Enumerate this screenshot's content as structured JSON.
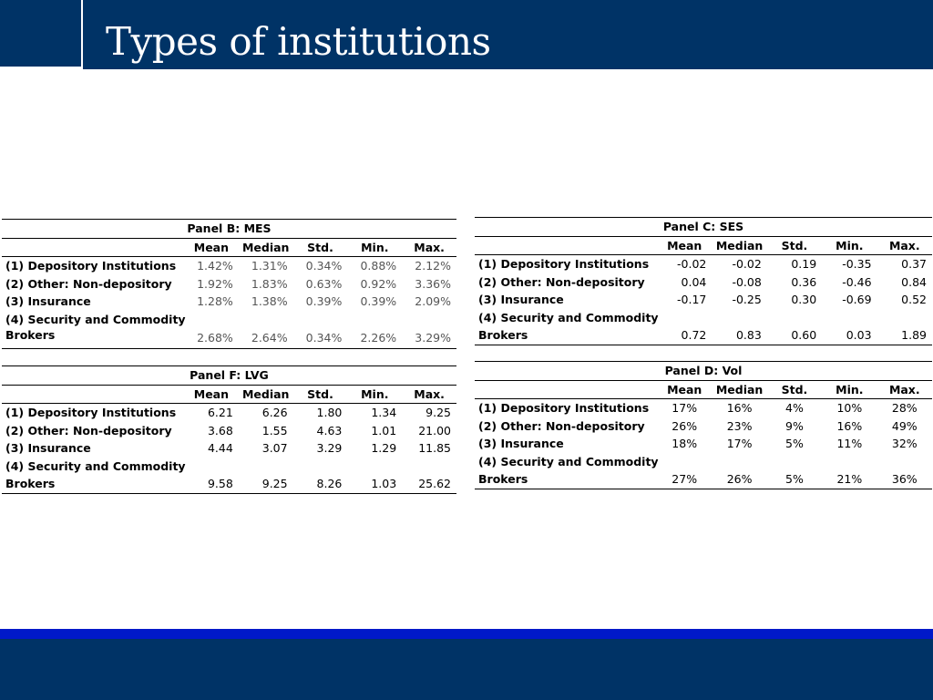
{
  "slide": {
    "title": "Types of institutions",
    "colors": {
      "header": "#003366",
      "accent": "#0019c9",
      "background": "#ffffff"
    }
  },
  "panels": {
    "B": {
      "title": "Panel B: MES",
      "columns": [
        "Mean",
        "Median",
        "Std.",
        "Min.",
        "Max."
      ],
      "rows": [
        {
          "label": "(1) Depository Institutions",
          "values": [
            "1.42%",
            "1.31%",
            "0.34%",
            "0.88%",
            "2.12%"
          ]
        },
        {
          "label": "(2) Other: Non-depository",
          "values": [
            "1.92%",
            "1.83%",
            "0.63%",
            "0.92%",
            "3.36%"
          ]
        },
        {
          "label": "(3) Insurance",
          "values": [
            "1.28%",
            "1.38%",
            "0.39%",
            "0.39%",
            "2.09%"
          ]
        },
        {
          "label": "(4) Security and Commodity",
          "label2": "Brokers",
          "values": [
            "2.68%",
            "2.64%",
            "0.34%",
            "2.26%",
            "3.29%"
          ]
        }
      ]
    },
    "C": {
      "title": "Panel C: SES",
      "columns": [
        "Mean",
        "Median",
        "Std.",
        "Min.",
        "Max."
      ],
      "rows": [
        {
          "label": "(1) Depository Institutions",
          "values": [
            "-0.02",
            "-0.02",
            "0.19",
            "-0.35",
            "0.37"
          ]
        },
        {
          "label": "(2) Other: Non-depository",
          "values": [
            "0.04",
            "-0.08",
            "0.36",
            "-0.46",
            "0.84"
          ]
        },
        {
          "label": "(3) Insurance",
          "values": [
            "-0.17",
            "-0.25",
            "0.30",
            "-0.69",
            "0.52"
          ]
        },
        {
          "label": "(4) Security and Commodity",
          "label2": "Brokers",
          "values": [
            "0.72",
            "0.83",
            "0.60",
            "0.03",
            "1.89"
          ]
        }
      ]
    },
    "F": {
      "title": "Panel F: LVG",
      "columns": [
        "Mean",
        "Median",
        "Std.",
        "Min.",
        "Max."
      ],
      "rows": [
        {
          "label": "(1) Depository Institutions",
          "values": [
            "6.21",
            "6.26",
            "1.80",
            "1.34",
            "9.25"
          ]
        },
        {
          "label": "(2) Other: Non-depository",
          "values": [
            "3.68",
            "1.55",
            "4.63",
            "1.01",
            "21.00"
          ]
        },
        {
          "label": "(3) Insurance",
          "values": [
            "4.44",
            "3.07",
            "3.29",
            "1.29",
            "11.85"
          ]
        },
        {
          "label": "(4) Security and Commodity",
          "label2": "Brokers",
          "values": [
            "9.58",
            "9.25",
            "8.26",
            "1.03",
            "25.62"
          ]
        }
      ]
    },
    "D": {
      "title": "Panel D: Vol",
      "columns": [
        "Mean",
        "Median",
        "Std.",
        "Min.",
        "Max."
      ],
      "rows": [
        {
          "label": "(1) Depository Institutions",
          "values": [
            "17%",
            "16%",
            "4%",
            "10%",
            "28%"
          ]
        },
        {
          "label": "(2) Other: Non-depository",
          "values": [
            "26%",
            "23%",
            "9%",
            "16%",
            "49%"
          ]
        },
        {
          "label": "(3) Insurance",
          "values": [
            "18%",
            "17%",
            "5%",
            "11%",
            "32%"
          ]
        },
        {
          "label": "(4) Security and Commodity",
          "label2": "Brokers",
          "values": [
            "27%",
            "26%",
            "5%",
            "21%",
            "36%"
          ]
        }
      ]
    }
  }
}
